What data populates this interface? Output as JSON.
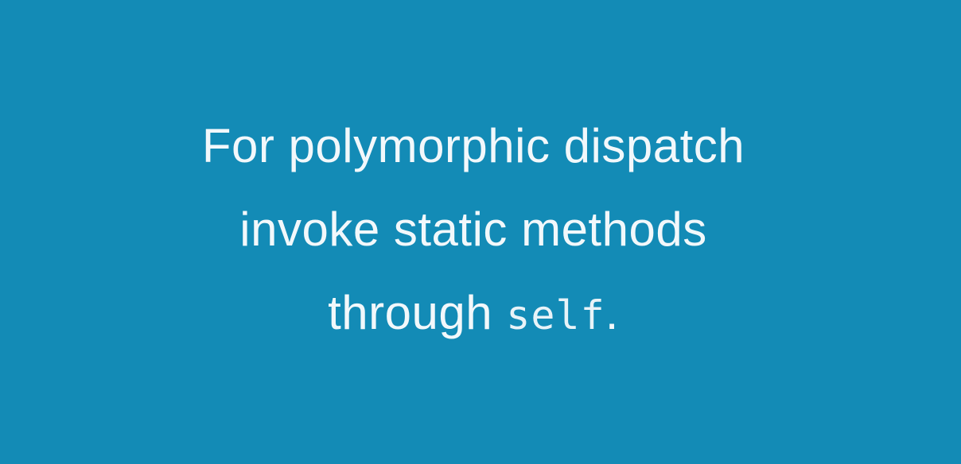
{
  "slide": {
    "background_color": "#138bb6",
    "text_color": "#f2f8fb",
    "lines": [
      "For polymorphic dispatch",
      "invoke static methods"
    ],
    "last_line": {
      "prefix": "through ",
      "code": "self",
      "suffix": "."
    }
  }
}
